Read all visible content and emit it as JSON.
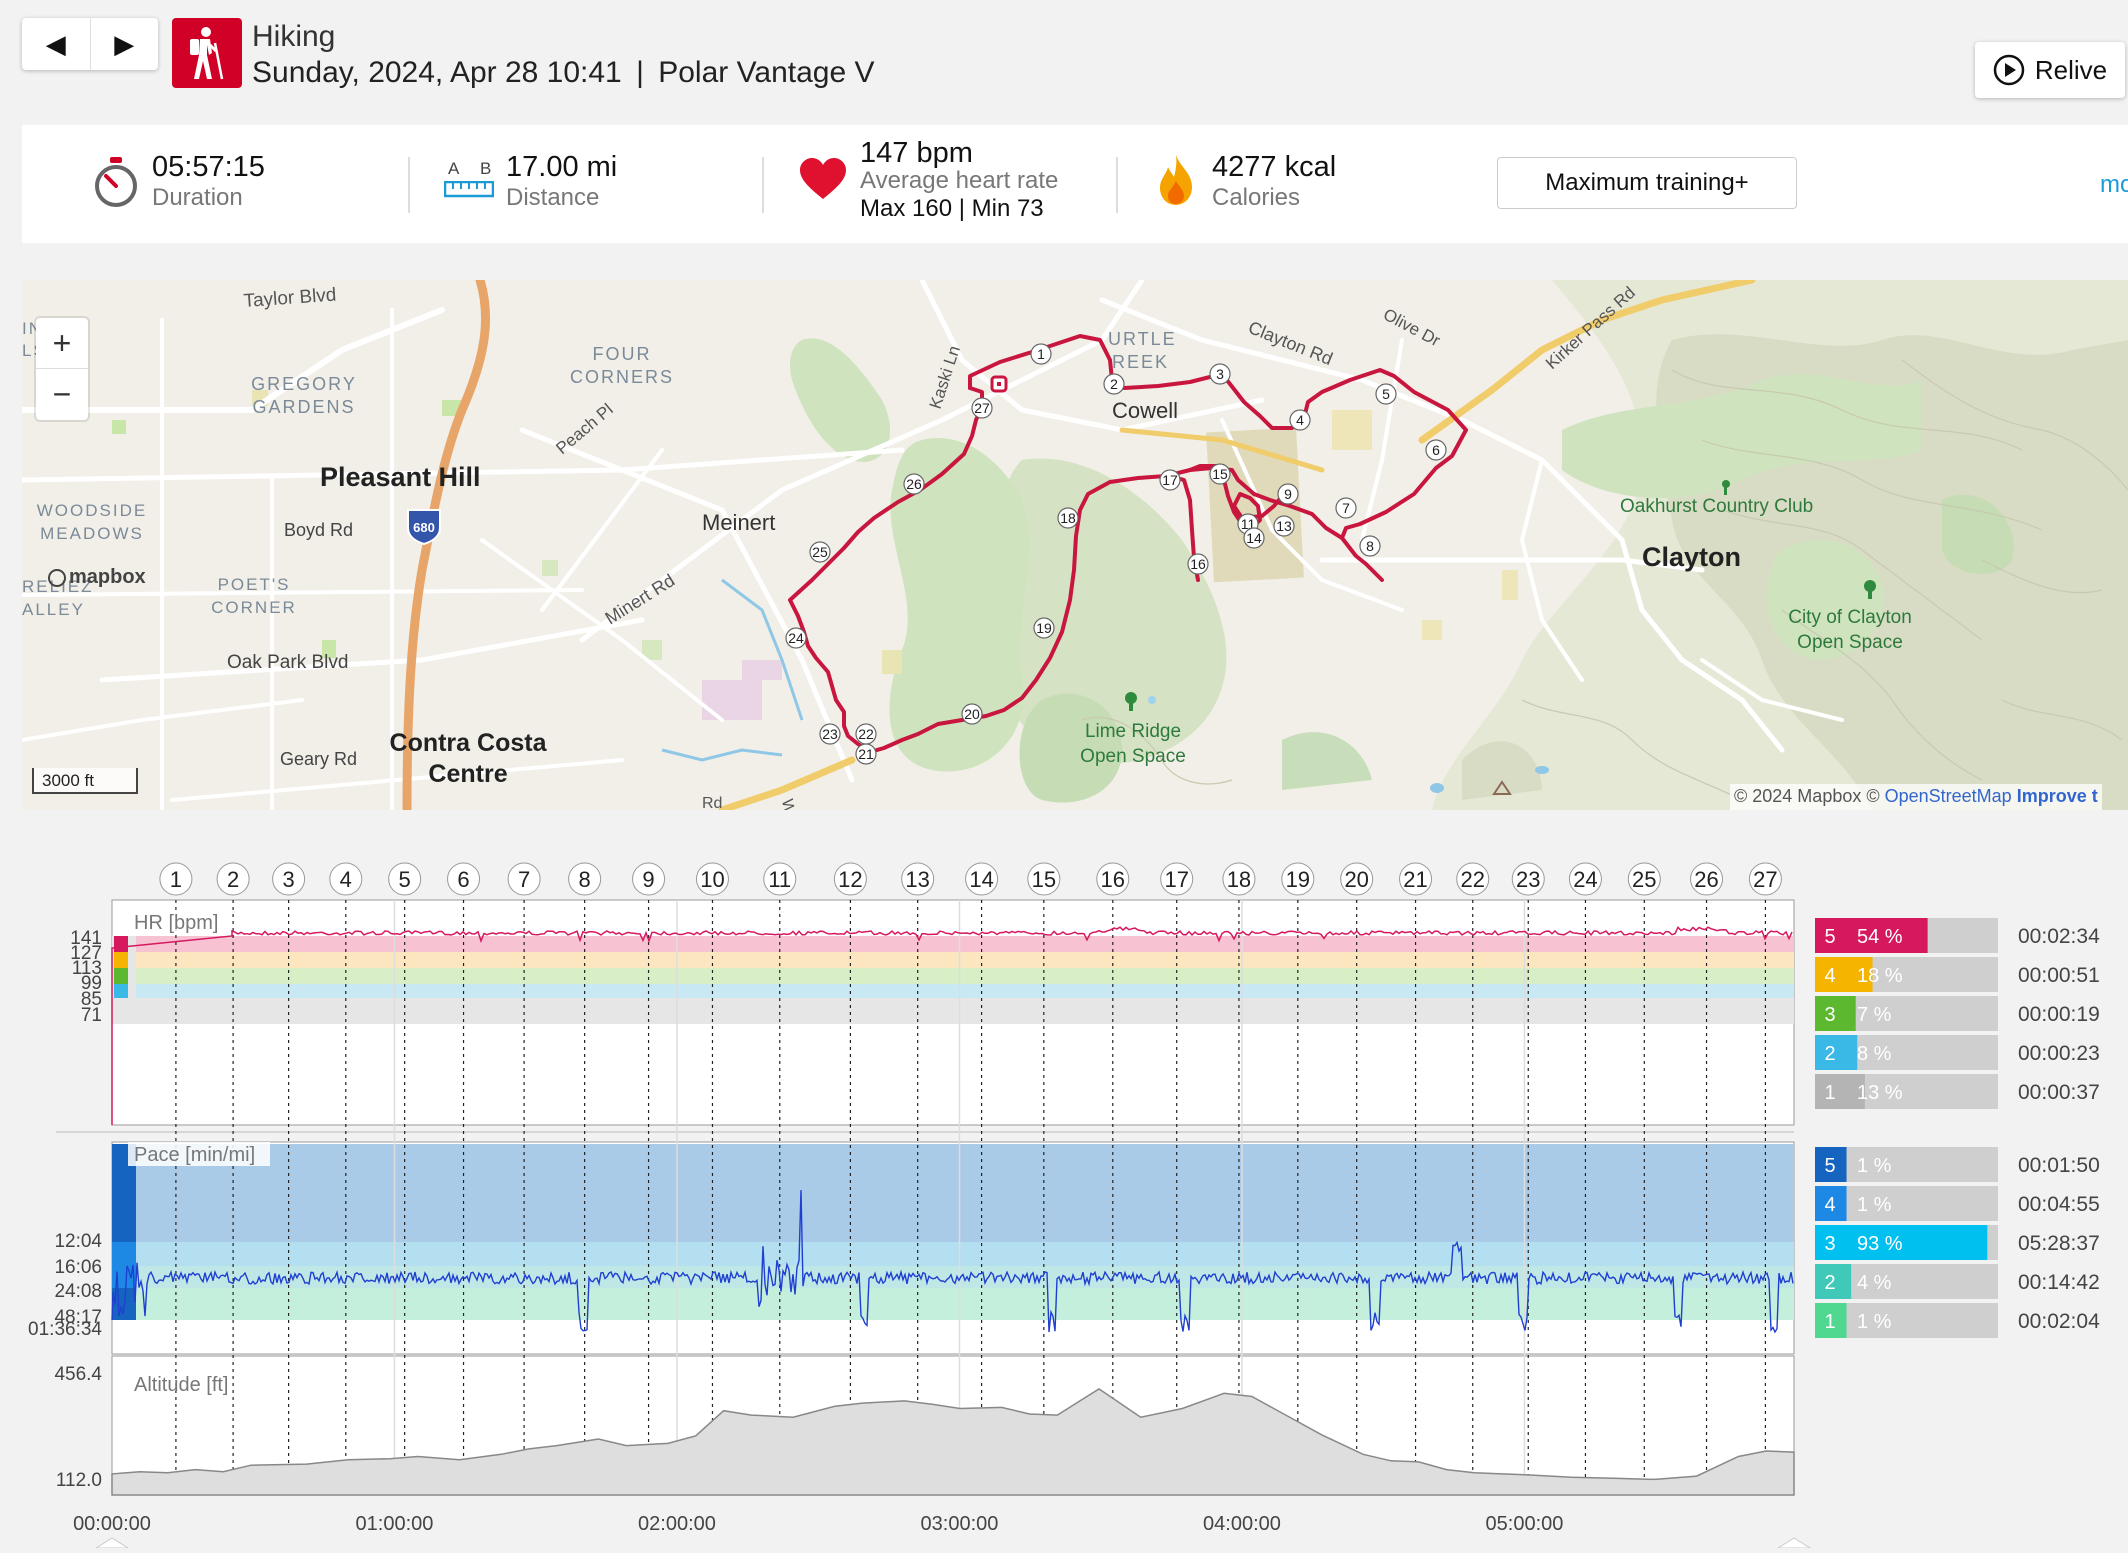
{
  "header": {
    "prev_icon": "◀",
    "next_icon": "▶",
    "sport": "Hiking",
    "date_time": "Sunday, 2024, Apr 28 10:41",
    "separator": "|",
    "device": "Polar Vantage V",
    "relive_label": "Relive",
    "sport_color": "#d10027"
  },
  "summary": {
    "duration": {
      "value": "05:57:15",
      "label": "Duration"
    },
    "distance": {
      "value": "17.00 mi",
      "label": "Distance",
      "icon_a": "A",
      "icon_b": "B"
    },
    "heart_rate": {
      "value": "147 bpm",
      "label": "Average heart rate",
      "max_min": "Max 160  |  Min 73"
    },
    "calories": {
      "value": "4277 kcal",
      "label": "Calories"
    },
    "training_load": "Maximum training+",
    "more": "mo"
  },
  "map": {
    "logo": "mapbox",
    "zoom_in": "+",
    "zoom_out": "−",
    "scale": "3000 ft",
    "attribution_prefix": "© 2024 Mapbox ©",
    "attribution_osm": "OpenStreetMap",
    "attribution_improve": "Improve t",
    "labels": {
      "taylor": "Taylor Blvd",
      "inia": "INIA",
      "ls": "LS",
      "gregory1": "GREGORY",
      "gregory2": "GARDENS",
      "four1": "FOUR",
      "four2": "CORNERS",
      "peach": "Peach Pl",
      "kaski": "Kaski Ln",
      "turtle1": "URTLE",
      "turtle2": "REEK",
      "cowell": "Cowell",
      "clayton_rd": "Clayton Rd",
      "olive": "Olive Dr",
      "kirker": "Kirker Pass Rd",
      "pleasant_hill": "Pleasant Hill",
      "i680": "680",
      "woodside1": "WOODSIDE",
      "woodside2": "MEADOWS",
      "boyd": "Boyd Rd",
      "meinert": "Meinert",
      "oakhurst": "Oakhurst Country Club",
      "clayton": "Clayton",
      "reliez1": "RELIEZ",
      "reliez2": "ALLEY",
      "poets1": "POET'S",
      "poets2": "CORNER",
      "minert": "Minert Rd",
      "oakpark": "Oak Park Blvd",
      "clayton_os1": "City of Clayton",
      "clayton_os2": "Open Space",
      "limeridge1": "Lime Ridge",
      "limeridge2": "Open Space",
      "geary": "Geary Rd",
      "ccc1": "Contra Costa",
      "ccc2": "Centre",
      "rd": "Rd",
      "w": "W"
    },
    "markers": [
      "1",
      "2",
      "3",
      "4",
      "5",
      "6",
      "7",
      "8",
      "9",
      "11",
      "13",
      "14",
      "15",
      "16",
      "17",
      "18",
      "19",
      "20",
      "21",
      "22",
      "23",
      "24",
      "25",
      "26",
      "27"
    ]
  },
  "charts": {
    "laps": [
      "1",
      "2",
      "3",
      "4",
      "5",
      "6",
      "7",
      "8",
      "9",
      "10",
      "11",
      "12",
      "13",
      "14",
      "15",
      "16",
      "17",
      "18",
      "19",
      "20",
      "21",
      "22",
      "23",
      "24",
      "25",
      "26",
      "27"
    ],
    "hr": {
      "title": "HR [bpm]",
      "ticks": [
        "141",
        "127",
        "113",
        "99",
        "85",
        "71"
      ],
      "zones": [
        {
          "zone": "5",
          "pct": "54 %",
          "fill": 0.54,
          "time": "00:02:34",
          "color": "#d6185f"
        },
        {
          "zone": "4",
          "pct": "18 %",
          "fill": 0.18,
          "time": "00:00:51",
          "color": "#f4b400"
        },
        {
          "zone": "3",
          "pct": "7 %",
          "fill": 0.07,
          "time": "00:00:19",
          "color": "#5cb82e"
        },
        {
          "zone": "2",
          "pct": "8 %",
          "fill": 0.08,
          "time": "00:00:23",
          "color": "#3ab8e6"
        },
        {
          "zone": "1",
          "pct": "13 %",
          "fill": 0.13,
          "time": "00:00:37",
          "color": "#b4b4b4"
        }
      ]
    },
    "pace": {
      "title": "Pace [min/mi]",
      "ticks": [
        "12:04",
        "16:06",
        "24:08",
        "48:17",
        "01:36:34"
      ],
      "zones": [
        {
          "zone": "5",
          "pct": "1 %",
          "fill": 0.01,
          "time": "00:01:50",
          "color": "#1565c0"
        },
        {
          "zone": "4",
          "pct": "1 %",
          "fill": 0.01,
          "time": "00:04:55",
          "color": "#1e88e5"
        },
        {
          "zone": "3",
          "pct": "93 %",
          "fill": 0.93,
          "time": "05:28:37",
          "color": "#00c0f0"
        },
        {
          "zone": "2",
          "pct": "4 %",
          "fill": 0.04,
          "time": "00:14:42",
          "color": "#40c8b8"
        },
        {
          "zone": "1",
          "pct": "1 %",
          "fill": 0.01,
          "time": "00:02:04",
          "color": "#50d890"
        }
      ]
    },
    "altitude": {
      "title": "Altitude [ft]",
      "max": "456.4",
      "min": "112.0"
    },
    "time_ticks": [
      "00:00:00",
      "01:00:00",
      "02:00:00",
      "03:00:00",
      "04:00:00",
      "05:00:00"
    ]
  }
}
